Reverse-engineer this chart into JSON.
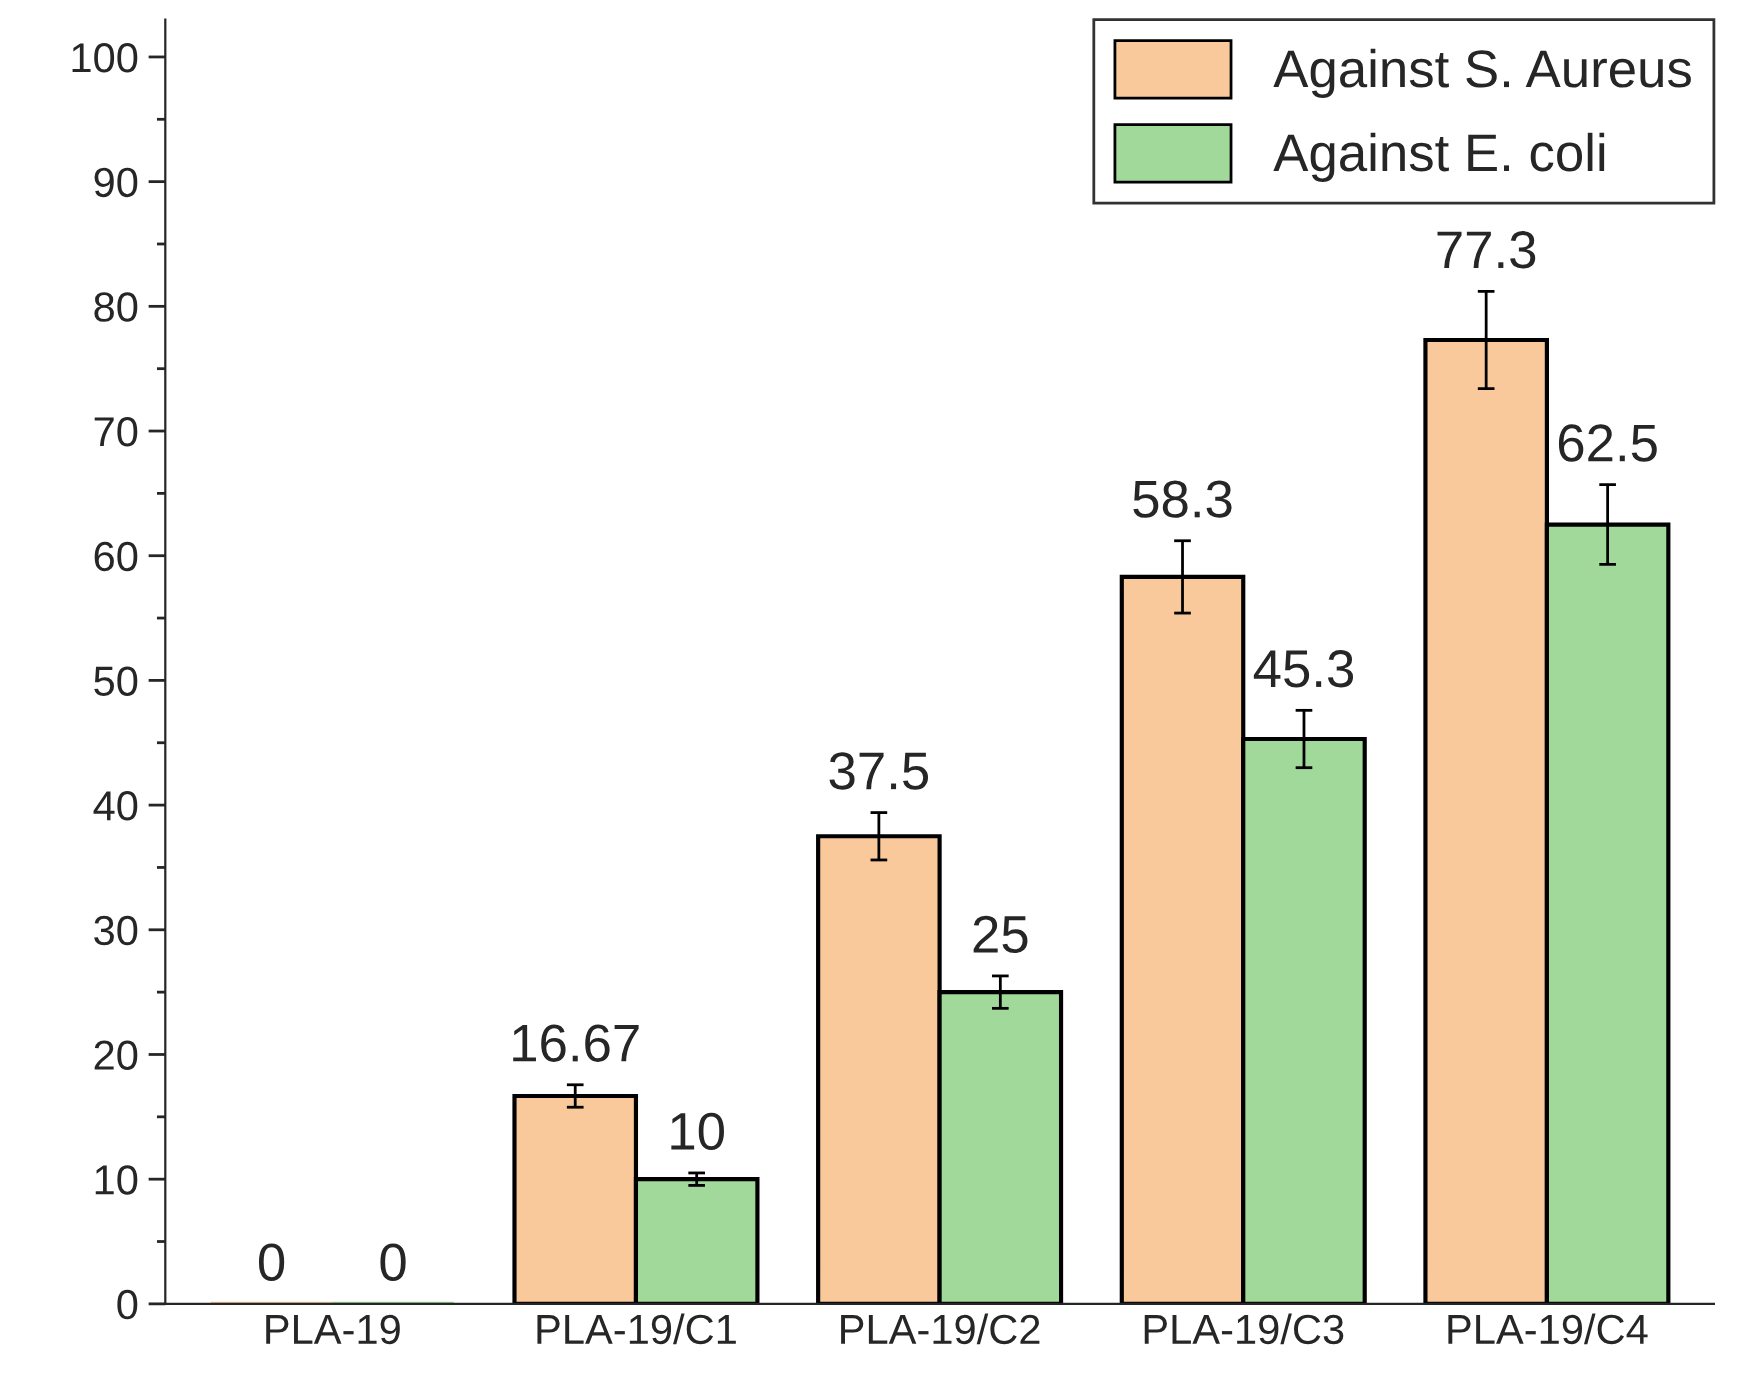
{
  "chart_data": {
    "type": "bar",
    "categories": [
      "PLA-19",
      "PLA-19/C1",
      "PLA-19/C2",
      "PLA-19/C3",
      "PLA-19/C4"
    ],
    "series": [
      {
        "name": "Against S. Aureus",
        "color": "#f9c89b",
        "values": [
          0,
          16.67,
          37.5,
          58.3,
          77.3
        ],
        "errors": [
          null,
          0.9,
          1.9,
          2.9,
          3.9
        ]
      },
      {
        "name": "Against E. coli",
        "color": "#a0d99a",
        "values": [
          0,
          10,
          25,
          45.3,
          62.5
        ],
        "errors": [
          null,
          0.5,
          1.3,
          2.3,
          3.2
        ]
      }
    ],
    "ylim": [
      0,
      103
    ],
    "yticks": [
      0,
      10,
      20,
      30,
      40,
      50,
      60,
      70,
      80,
      90,
      100
    ],
    "data_labels": true,
    "legend": "top right",
    "grid": false
  }
}
